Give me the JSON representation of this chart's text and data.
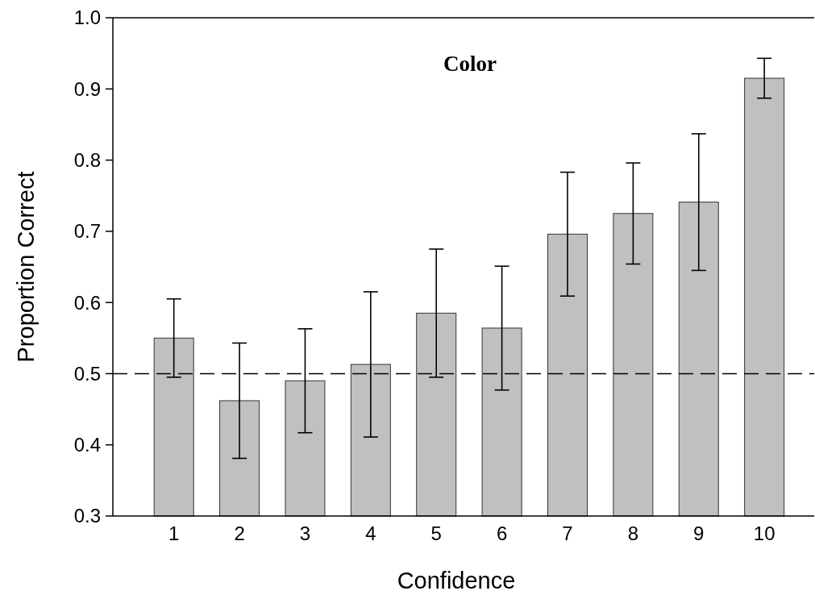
{
  "chart_data": {
    "type": "bar",
    "title": "Color",
    "xlabel": "Confidence",
    "ylabel": "Proportion Correct",
    "categories": [
      "1",
      "2",
      "3",
      "4",
      "5",
      "6",
      "7",
      "8",
      "9",
      "10"
    ],
    "values": [
      0.55,
      0.462,
      0.49,
      0.513,
      0.585,
      0.564,
      0.696,
      0.725,
      0.741,
      0.915
    ],
    "errors": [
      0.055,
      0.081,
      0.073,
      0.102,
      0.09,
      0.087,
      0.087,
      0.071,
      0.096,
      0.028
    ],
    "color": "#c0c0c0",
    "ylim": [
      0.3,
      1.0
    ],
    "yticks": [
      {
        "value": 0.3,
        "label": "0.3"
      },
      {
        "value": 0.4,
        "label": "0.4"
      },
      {
        "value": 0.5,
        "label": "0.5"
      },
      {
        "value": 0.6,
        "label": "0.6"
      },
      {
        "value": 0.7,
        "label": "0.7"
      },
      {
        "value": 0.8,
        "label": "0.8"
      },
      {
        "value": 0.9,
        "label": "0.9"
      },
      {
        "value": 1.0,
        "label": "1.0"
      }
    ],
    "ref_lines": [
      {
        "axis": "y",
        "value": 0.5,
        "color": "#000000",
        "line_style": "dashed"
      }
    ]
  }
}
